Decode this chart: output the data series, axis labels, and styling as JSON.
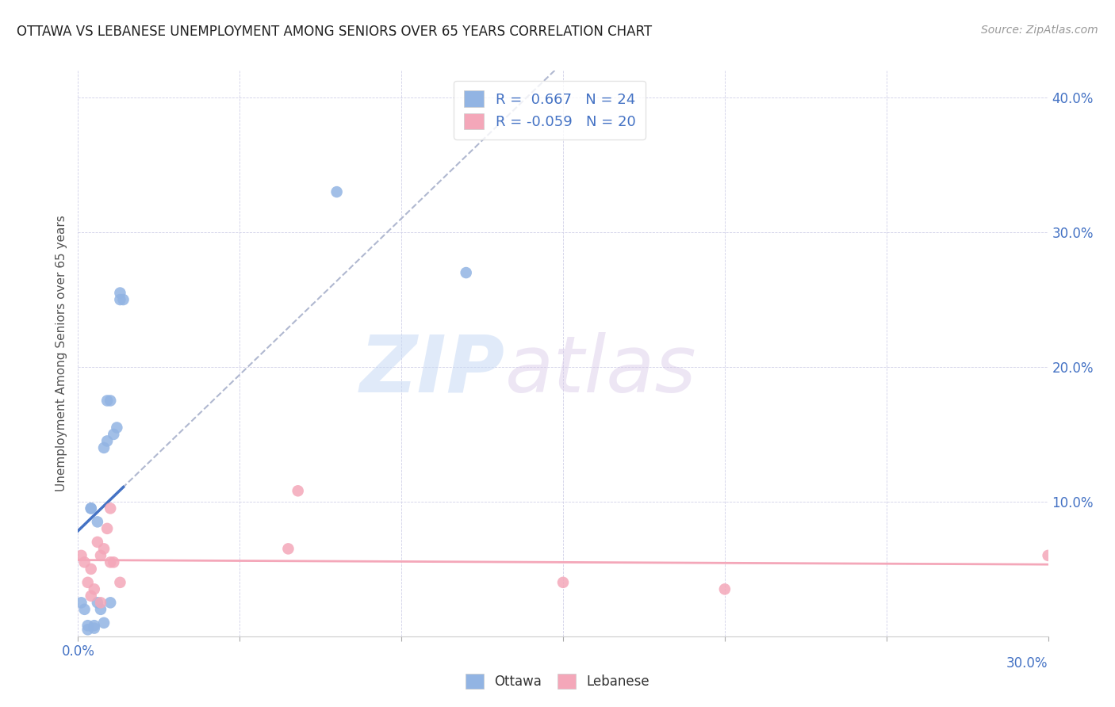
{
  "title": "OTTAWA VS LEBANESE UNEMPLOYMENT AMONG SENIORS OVER 65 YEARS CORRELATION CHART",
  "source": "Source: ZipAtlas.com",
  "ylabel": "Unemployment Among Seniors over 65 years",
  "xlim": [
    0.0,
    0.3
  ],
  "ylim": [
    0.0,
    0.42
  ],
  "watermark_zip": "ZIP",
  "watermark_atlas": "atlas",
  "legend_ottawa_R": "0.667",
  "legend_ottawa_N": "24",
  "legend_lebanese_R": "-0.059",
  "legend_lebanese_N": "20",
  "ottawa_color": "#92b4e3",
  "lebanese_color": "#f4a7b9",
  "ottawa_line_color": "#4472c4",
  "lebanese_line_color": "#f4a7b9",
  "trendline_dashed_color": "#b0b8d0",
  "ottawa_scatter_x": [
    0.001,
    0.002,
    0.003,
    0.003,
    0.004,
    0.004,
    0.005,
    0.005,
    0.006,
    0.006,
    0.007,
    0.008,
    0.008,
    0.009,
    0.009,
    0.01,
    0.01,
    0.011,
    0.012,
    0.013,
    0.013,
    0.014,
    0.08,
    0.12
  ],
  "ottawa_scatter_y": [
    0.025,
    0.02,
    0.005,
    0.008,
    0.095,
    0.095,
    0.006,
    0.008,
    0.085,
    0.025,
    0.02,
    0.01,
    0.14,
    0.145,
    0.175,
    0.025,
    0.175,
    0.15,
    0.155,
    0.25,
    0.255,
    0.25,
    0.33,
    0.27
  ],
  "lebanese_scatter_x": [
    0.001,
    0.002,
    0.003,
    0.004,
    0.004,
    0.005,
    0.006,
    0.007,
    0.007,
    0.008,
    0.009,
    0.01,
    0.01,
    0.011,
    0.013,
    0.065,
    0.068,
    0.15,
    0.2,
    0.3
  ],
  "lebanese_scatter_y": [
    0.06,
    0.055,
    0.04,
    0.03,
    0.05,
    0.035,
    0.07,
    0.025,
    0.06,
    0.065,
    0.08,
    0.055,
    0.095,
    0.055,
    0.04,
    0.065,
    0.108,
    0.04,
    0.035,
    0.06
  ],
  "background_color": "#ffffff",
  "grid_color": "#d0d0e8",
  "tick_color": "#4472c4",
  "label_color": "#555555"
}
